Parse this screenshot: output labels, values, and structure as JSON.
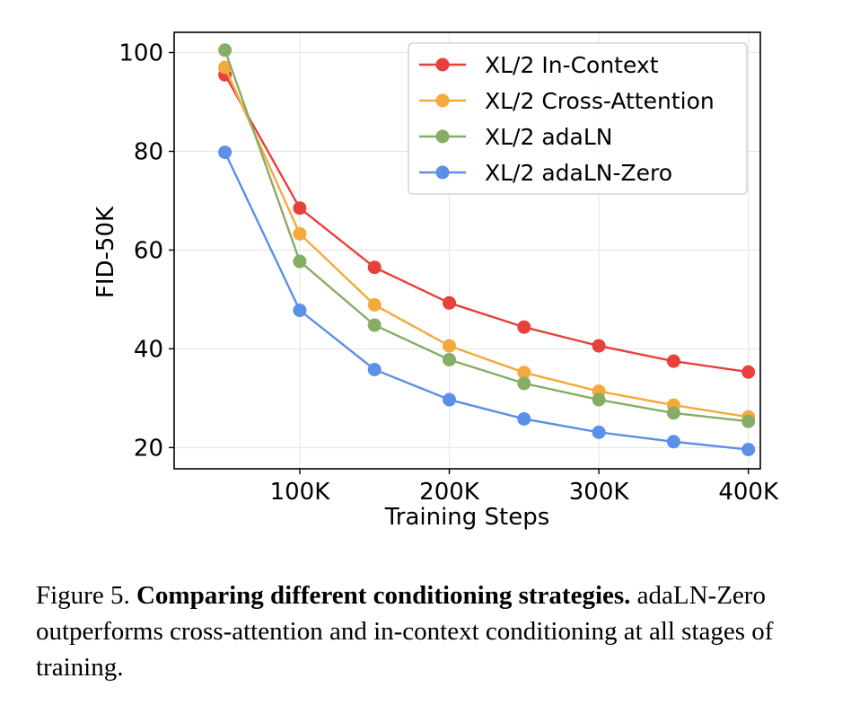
{
  "chart_data": {
    "type": "line",
    "title": "",
    "xlabel": "Training Steps",
    "ylabel": "FID-50K",
    "x": [
      50000,
      100000,
      150000,
      200000,
      250000,
      300000,
      350000,
      400000
    ],
    "xlim": [
      16000,
      408000
    ],
    "ylim": [
      15.7,
      104.1
    ],
    "xticks": [
      100000,
      200000,
      300000,
      400000
    ],
    "xtick_labels": [
      "100K",
      "200K",
      "300K",
      "400K"
    ],
    "yticks": [
      20,
      40,
      60,
      80,
      100
    ],
    "ytick_labels": [
      "20",
      "40",
      "60",
      "80",
      "100"
    ],
    "grid": true,
    "legend_position": "top-right",
    "series": [
      {
        "name": "XL/2 In-Context",
        "color": "#e8403a",
        "values": [
          95.5,
          68.5,
          56.5,
          49.3,
          44.4,
          40.6,
          37.5,
          35.3
        ]
      },
      {
        "name": "XL/2 Cross-Attention",
        "color": "#f4a93c",
        "values": [
          97.0,
          63.3,
          48.9,
          40.6,
          35.2,
          31.4,
          28.6,
          26.2
        ]
      },
      {
        "name": "XL/2 adaLN",
        "color": "#86ad66",
        "values": [
          100.5,
          57.7,
          44.8,
          37.8,
          33.0,
          29.7,
          27.0,
          25.3
        ]
      },
      {
        "name": "XL/2 adaLN-Zero",
        "color": "#5b8fe8",
        "values": [
          79.8,
          47.8,
          35.8,
          29.7,
          25.8,
          23.1,
          21.2,
          19.6
        ]
      }
    ]
  },
  "caption": {
    "label": "Figure 5.",
    "bold": "Comparing different conditioning strategies.",
    "text": "adaLN-Zero outperforms cross-attention and in-context conditioning at all stages of training."
  }
}
